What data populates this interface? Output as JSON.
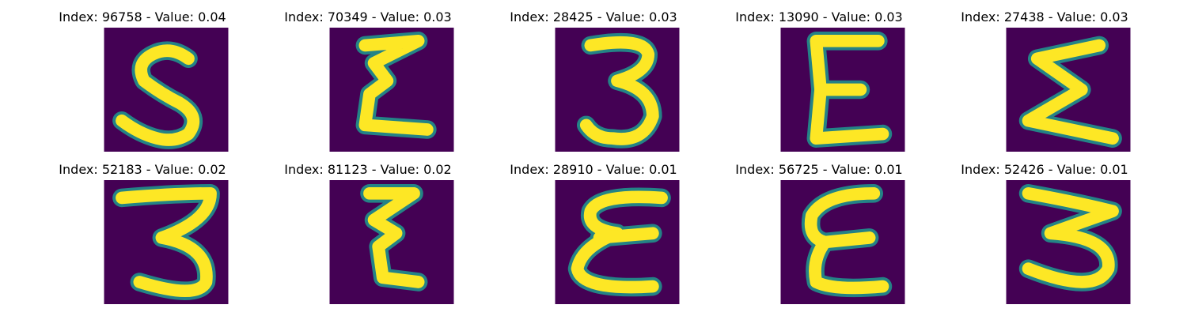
{
  "figure": {
    "background_color": "#440154",
    "stroke_color": "#fde725",
    "edge_color": "#21918c",
    "panels": [
      {
        "title": "Index: 96758 - Value: 0.04",
        "glyph": "S"
      },
      {
        "title": "Index: 70349 - Value: 0.03",
        "glyph": "Ɛ"
      },
      {
        "title": "Index: 28425 - Value: 0.03",
        "glyph": "3"
      },
      {
        "title": "Index: 13090 - Value: 0.03",
        "glyph": "E"
      },
      {
        "title": "Index: 27438 - Value: 0.03",
        "glyph": "Σ"
      },
      {
        "title": "Index: 52183 - Value: 0.02",
        "glyph": "3"
      },
      {
        "title": "Index: 81123 - Value: 0.02",
        "glyph": "Ɛ"
      },
      {
        "title": "Index: 28910 - Value: 0.01",
        "glyph": "Ɛ"
      },
      {
        "title": "Index: 56725 - Value: 0.01",
        "glyph": "E"
      },
      {
        "title": "Index: 52426 - Value: 0.01",
        "glyph": "3"
      }
    ]
  }
}
